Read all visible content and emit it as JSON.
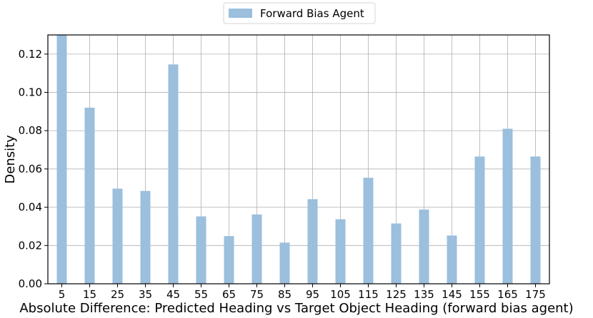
{
  "chart_data": {
    "type": "bar",
    "title": "",
    "xlabel": "Absolute Difference: Predicted Heading vs Target Object Heading (forward bias agent)",
    "ylabel": "Density",
    "categories": [
      "5",
      "15",
      "25",
      "35",
      "45",
      "55",
      "65",
      "75",
      "85",
      "95",
      "105",
      "115",
      "125",
      "135",
      "145",
      "155",
      "165",
      "175"
    ],
    "series": [
      {
        "name": "Forward Bias Agent",
        "color": "#9bbfdd",
        "values": [
          0.13,
          0.092,
          0.0497,
          0.0485,
          0.1146,
          0.0352,
          0.0249,
          0.0362,
          0.0215,
          0.0442,
          0.0337,
          0.0554,
          0.0315,
          0.0388,
          0.0252,
          0.0665,
          0.081,
          0.0665
        ]
      }
    ],
    "ylim": [
      0,
      0.13
    ],
    "yticks": [
      "0.00",
      "0.02",
      "0.04",
      "0.06",
      "0.08",
      "0.10",
      "0.12"
    ],
    "grid": true,
    "legend_position": "top-center"
  }
}
